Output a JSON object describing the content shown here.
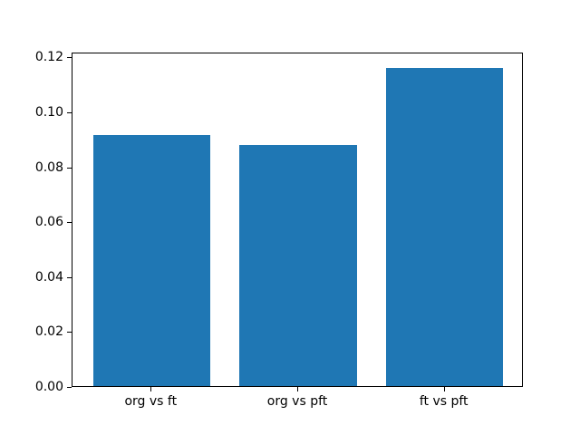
{
  "figure": {
    "background": "#ffffff",
    "spine_color": "#000000",
    "tick_color": "#000000",
    "text_color": "#000000"
  },
  "chart_data": {
    "type": "bar",
    "title": "",
    "xlabel": "",
    "ylabel": "",
    "categories": [
      "org vs ft",
      "org vs pft",
      "ft vs pft"
    ],
    "values": [
      0.0915,
      0.0878,
      0.116
    ],
    "bar_color": "#1f77b4",
    "ylim": [
      0,
      0.1218
    ],
    "yticks": [
      0.0,
      0.02,
      0.04,
      0.06,
      0.08,
      0.1,
      0.12
    ],
    "ytick_labels": [
      "0.00",
      "0.02",
      "0.04",
      "0.06",
      "0.08",
      "0.10",
      "0.12"
    ],
    "grid": false,
    "legend": null,
    "bar_width_fraction": 0.8
  }
}
